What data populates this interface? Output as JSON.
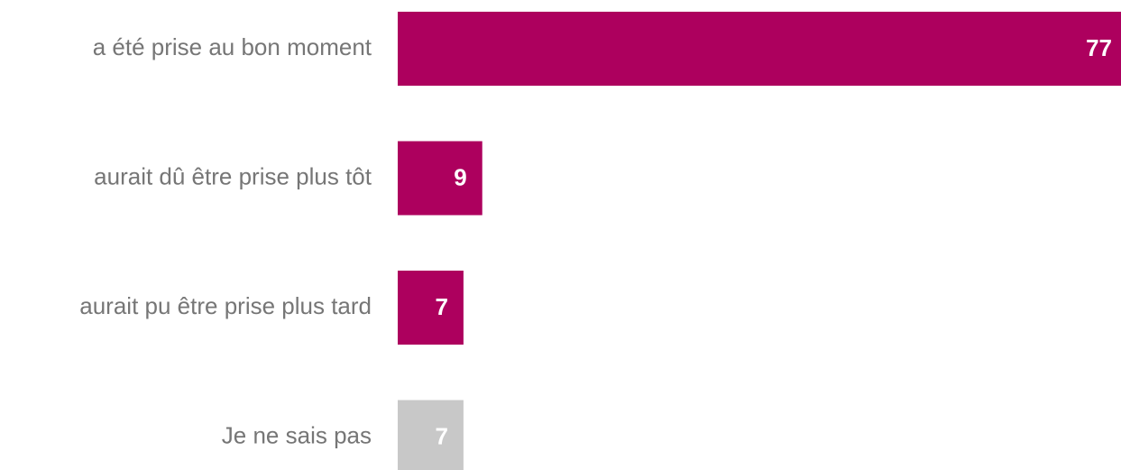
{
  "chart_data": {
    "type": "bar",
    "orientation": "horizontal",
    "categories": [
      "a été prise au bon moment",
      "aurait dû être prise plus tôt",
      "aurait pu être prise plus tard",
      "Je ne sais pas"
    ],
    "values": [
      77,
      9,
      7,
      7
    ],
    "colors": [
      "#ad005e",
      "#ad005e",
      "#ad005e",
      "#c8c8c8"
    ]
  }
}
